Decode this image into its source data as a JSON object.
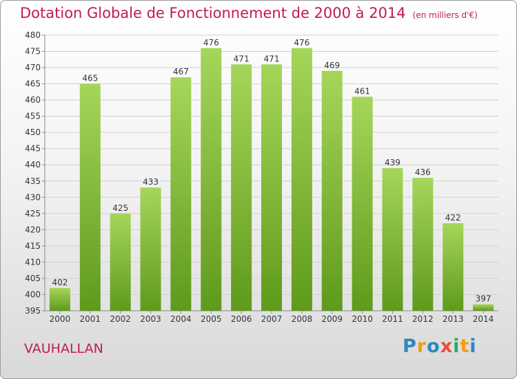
{
  "title": "Dotation Globale de Fonctionnement de 2000 à 2014",
  "subtitle": "(en milliers d'€)",
  "commune": "VAUHALLAN",
  "logo": {
    "letters": [
      "P",
      "r",
      "o",
      "x",
      "i",
      "t",
      "i"
    ],
    "colors": [
      "#2e86c1",
      "#f39c12",
      "#2e86c1",
      "#e74c3c",
      "#27ae60",
      "#f39c12",
      "#2e86c1"
    ]
  },
  "colors": {
    "accent": "#c2185b",
    "bar_top": "#a5d65a",
    "bar_bottom": "#5f9a1c"
  },
  "chart_data": {
    "type": "bar",
    "title": "Dotation Globale de Fonctionnement de 2000 à 2014",
    "subtitle": "(en milliers d'€)",
    "categories": [
      "2000",
      "2001",
      "2002",
      "2003",
      "2004",
      "2005",
      "2006",
      "2007",
      "2008",
      "2009",
      "2010",
      "2011",
      "2012",
      "2013",
      "2014"
    ],
    "values": [
      402,
      465,
      425,
      433,
      467,
      476,
      471,
      471,
      476,
      469,
      461,
      439,
      436,
      422,
      397
    ],
    "ylim": [
      395,
      480
    ],
    "yticks": [
      395,
      400,
      405,
      410,
      415,
      420,
      425,
      430,
      435,
      440,
      445,
      450,
      455,
      460,
      465,
      470,
      475,
      480
    ],
    "grid": true,
    "xlabel": "",
    "ylabel": ""
  }
}
